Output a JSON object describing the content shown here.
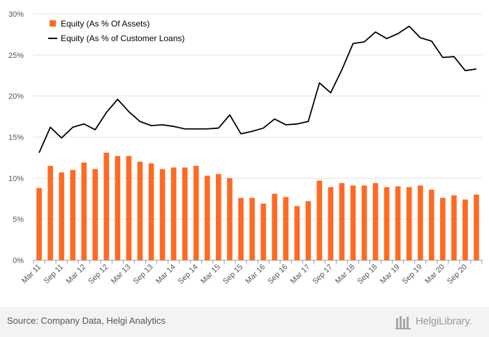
{
  "chart_data": {
    "type": "bar",
    "title": "",
    "xlabel": "",
    "ylabel": "",
    "ylim": [
      0,
      30
    ],
    "y_ticks": [
      "0%",
      "5%",
      "10%",
      "15%",
      "20%",
      "25%",
      "30%"
    ],
    "grid": "horizontal",
    "legend_position": "top-left",
    "categories": [
      "Mar 11",
      "Jun 11",
      "Sep 11",
      "Dec 11",
      "Mar 12",
      "Jun 12",
      "Sep 12",
      "Dec 12",
      "Mar 13",
      "Jun 13",
      "Sep 13",
      "Dec 13",
      "Mar 14",
      "Jun 14",
      "Sep 14",
      "Dec 14",
      "Mar 15",
      "Jun 15",
      "Sep 15",
      "Dec 15",
      "Mar 16",
      "Jun 16",
      "Sep 16",
      "Dec 16",
      "Mar 17",
      "Jun 17",
      "Sep 17",
      "Dec 17",
      "Mar 18",
      "Jun 18",
      "Sep 18",
      "Dec 18",
      "Mar 19",
      "Jun 19",
      "Sep 19",
      "Dec 19",
      "Mar 20",
      "Jun 20",
      "Sep 20",
      "Dec 20"
    ],
    "tick_labels": [
      "Mar 11",
      "Sep 11",
      "Mar 12",
      "Sep 12",
      "Mar 13",
      "Sep 13",
      "Mar 14",
      "Sep 14",
      "Mar 15",
      "Sep 15",
      "Mar 16",
      "Sep 16",
      "Mar 17",
      "Sep 17",
      "Mar 18",
      "Sep 18",
      "Mar 19",
      "Sep 19",
      "Mar 20",
      "Sep 20"
    ],
    "series": [
      {
        "name": "Equity (As % Of Assets)",
        "type": "bar",
        "color": "#ff6a23",
        "values": [
          8.8,
          11.5,
          10.7,
          11.0,
          11.9,
          11.1,
          13.1,
          12.7,
          12.7,
          12.0,
          11.8,
          11.1,
          11.3,
          11.3,
          11.5,
          10.3,
          10.5,
          10.0,
          7.6,
          7.6,
          6.9,
          8.1,
          7.7,
          6.6,
          7.2,
          9.7,
          8.9,
          9.4,
          9.1,
          9.1,
          9.4,
          8.9,
          9.0,
          8.9,
          9.1,
          8.6,
          7.6,
          7.9,
          7.4,
          8.0
        ]
      },
      {
        "name": "Equity (As % of Customer Loans)",
        "type": "line",
        "color": "#000000",
        "values": [
          13.1,
          16.2,
          14.9,
          16.2,
          16.6,
          15.9,
          18.0,
          19.6,
          18.1,
          16.9,
          16.4,
          16.5,
          16.3,
          16.0,
          16.0,
          16.0,
          16.1,
          17.7,
          15.4,
          15.7,
          16.1,
          17.2,
          16.5,
          16.6,
          16.9,
          21.6,
          20.4,
          23.2,
          26.4,
          26.6,
          27.8,
          27.0,
          27.6,
          28.5,
          27.1,
          26.7,
          24.7,
          24.8,
          23.1,
          23.3
        ]
      }
    ]
  },
  "footer": {
    "source": "Source: Company Data, Helgi Analytics",
    "logo_text": "HelgiLibrary."
  }
}
